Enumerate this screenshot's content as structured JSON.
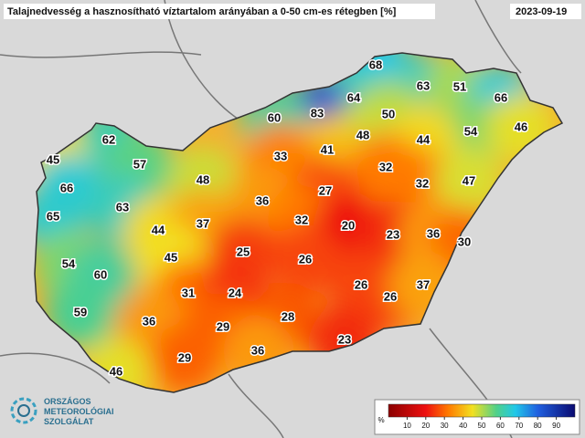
{
  "header": {
    "title": "Talajnedvesség a hasznosítható víztartalom arányában a 0-50 cm-es rétegben [%]",
    "date": "2023-09-19"
  },
  "stations": [
    68,
    63,
    51,
    66,
    64,
    83,
    60,
    50,
    54,
    46,
    62,
    48,
    44,
    41,
    33,
    57,
    45,
    32,
    48,
    32,
    47,
    66,
    27,
    36,
    63,
    65,
    32,
    20,
    44,
    37,
    23,
    36,
    30,
    25,
    26,
    45,
    54,
    60,
    31,
    24,
    26,
    26,
    37,
    59,
    36,
    29,
    28,
    23,
    36,
    29,
    46
  ],
  "legend": {
    "unit": "%",
    "ticks": [
      10,
      20,
      30,
      40,
      50,
      60,
      70,
      80,
      90
    ]
  },
  "logo": {
    "lines": [
      "ORSZÁGOS",
      "METEOROLÓGIAI",
      "SZOLGÁLAT"
    ]
  }
}
